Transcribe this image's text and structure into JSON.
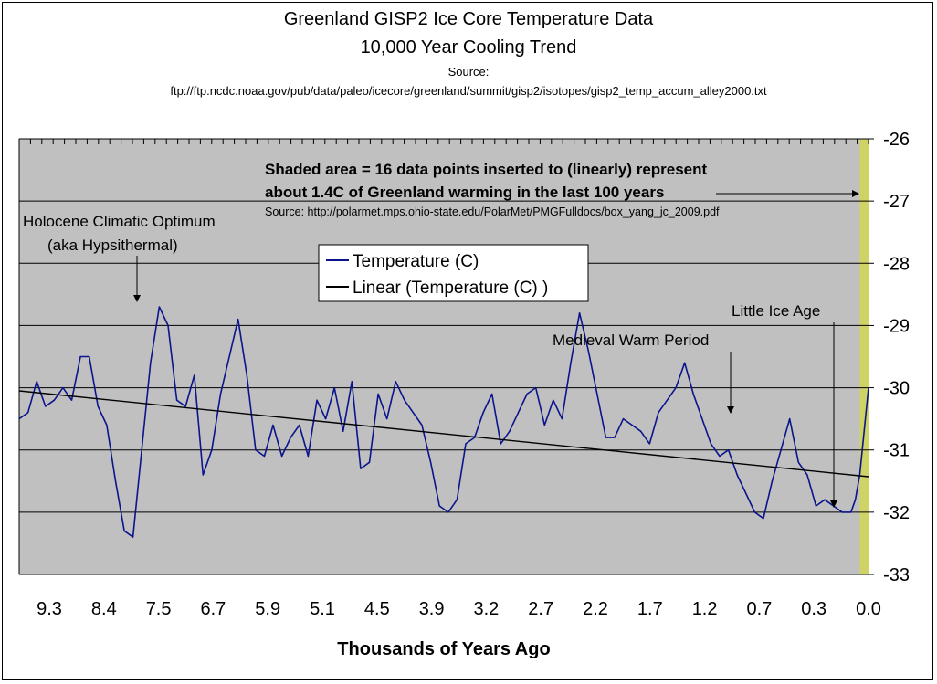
{
  "chart_data": {
    "type": "line",
    "title": "Greenland GISP2 Ice Core Temperature Data",
    "subtitle": "10,000 Year Cooling Trend",
    "source_label": "Source:",
    "source_url": "ftp://ftp.ncdc.noaa.gov/pub/data/paleo/icecore/greenland/summit/gisp2/isotopes/gisp2_temp_accum_alley2000.txt",
    "xlabel": "Thousands of Years Ago",
    "ylabel": "",
    "ylim": [
      -33,
      -26
    ],
    "y_ticks": [
      -26,
      -27,
      -28,
      -29,
      -30,
      -31,
      -32,
      -33
    ],
    "y_axis_side": "right",
    "x_reversed": true,
    "x_tick_labels": [
      "9.3",
      "8.4",
      "7.5",
      "6.7",
      "5.9",
      "5.1",
      "4.5",
      "3.9",
      "3.2",
      "2.7",
      "2.2",
      "1.7",
      "1.2",
      "0.7",
      "0.3",
      "0.0"
    ],
    "grid": true,
    "legend": {
      "placement": "top-center",
      "entries": [
        "Temperature (C)",
        "Linear (Temperature (C) )"
      ]
    },
    "series": [
      {
        "name": "Temperature (C)",
        "color": "#0a148c",
        "x": [
          9.7,
          9.6,
          9.5,
          9.4,
          9.3,
          9.2,
          9.1,
          9.0,
          8.9,
          8.8,
          8.7,
          8.6,
          8.5,
          8.4,
          8.3,
          8.2,
          8.1,
          8.0,
          7.9,
          7.8,
          7.7,
          7.6,
          7.5,
          7.4,
          7.3,
          7.2,
          7.1,
          7.0,
          6.9,
          6.8,
          6.7,
          6.6,
          6.5,
          6.4,
          6.3,
          6.2,
          6.1,
          6.0,
          5.9,
          5.8,
          5.7,
          5.6,
          5.5,
          5.4,
          5.3,
          5.2,
          5.1,
          5.0,
          4.9,
          4.8,
          4.7,
          4.6,
          4.5,
          4.4,
          4.3,
          4.2,
          4.1,
          4.0,
          3.9,
          3.8,
          3.7,
          3.6,
          3.5,
          3.4,
          3.3,
          3.2,
          3.1,
          3.0,
          2.9,
          2.8,
          2.7,
          2.6,
          2.5,
          2.4,
          2.3,
          2.2,
          2.1,
          2.0,
          1.9,
          1.8,
          1.7,
          1.6,
          1.5,
          1.4,
          1.3,
          1.2,
          1.1,
          1.0,
          0.9,
          0.8,
          0.7,
          0.6,
          0.5,
          0.4,
          0.3,
          0.2,
          0.15,
          0.1,
          0.05,
          0.0
        ],
        "y": [
          -30.5,
          -30.4,
          -29.9,
          -30.3,
          -30.2,
          -30.0,
          -30.2,
          -29.5,
          -29.5,
          -30.3,
          -30.6,
          -31.5,
          -32.3,
          -32.4,
          -31.0,
          -29.6,
          -28.7,
          -29.0,
          -30.2,
          -30.3,
          -29.8,
          -31.4,
          -31.0,
          -30.1,
          -29.5,
          -28.9,
          -29.8,
          -31.0,
          -31.1,
          -30.6,
          -31.1,
          -30.8,
          -30.6,
          -31.1,
          -30.2,
          -30.5,
          -30.0,
          -30.7,
          -29.9,
          -31.3,
          -31.2,
          -30.1,
          -30.5,
          -29.9,
          -30.2,
          -30.4,
          -30.6,
          -31.2,
          -31.9,
          -32.0,
          -31.8,
          -30.9,
          -30.8,
          -30.4,
          -30.1,
          -30.9,
          -30.7,
          -30.4,
          -30.1,
          -30.0,
          -30.6,
          -30.2,
          -30.5,
          -29.6,
          -28.8,
          -29.4,
          -30.1,
          -30.8,
          -30.8,
          -30.5,
          -30.6,
          -30.7,
          -30.9,
          -30.4,
          -30.2,
          -30.0,
          -29.6,
          -30.1,
          -30.5,
          -30.9,
          -31.1,
          -31.0,
          -31.4,
          -31.7,
          -32.0,
          -32.1,
          -31.5,
          -31.0,
          -30.5,
          -31.2,
          -31.4,
          -31.9,
          -31.8,
          -31.9,
          -32.0,
          -32.0,
          -31.8,
          -31.4,
          -30.7,
          -30.0
        ]
      },
      {
        "name": "Linear (Temperature (C) )",
        "color": "#000000",
        "x": [
          9.7,
          0.0
        ],
        "y": [
          -30.05,
          -31.43
        ]
      }
    ],
    "shaded_region": {
      "x_from": 0.1,
      "x_to": 0.0,
      "color": "#cfd366"
    },
    "annotations": [
      {
        "text": "Holocene Climatic Optimum",
        "bold": false
      },
      {
        "text": "(aka Hypsithermal)",
        "bold": false
      },
      {
        "text": "Medieval Warm Period",
        "bold": false
      },
      {
        "text": "Little Ice Age",
        "bold": false
      },
      {
        "text": "Shaded area = 16 data points inserted to (linearly) represent",
        "bold": true
      },
      {
        "text": "about 1.4C of Greenland warming in the last 100 years",
        "bold": true
      },
      {
        "text": "Source: http://polarmet.mps.ohio-state.edu/PolarMet/PMGFulldocs/box_yang_jc_2009.pdf",
        "bold": false
      }
    ]
  }
}
